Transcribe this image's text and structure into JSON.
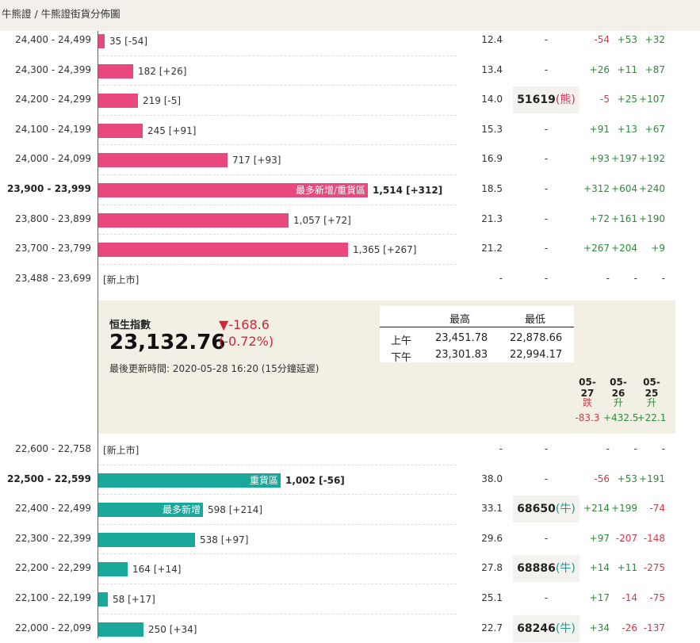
{
  "breadcrumb": "牛熊證 / 牛熊證街貨分佈圖",
  "top_rows": [
    {
      "range": "24,400 - 24,499",
      "bold": false,
      "bar_ratio": 0.0182,
      "count": "35 [-54]",
      "inlabel": "",
      "rate": "12.4",
      "code": "-",
      "code_type": "",
      "ch": [
        "-54",
        "+53",
        "+32"
      ]
    },
    {
      "range": "24,300 - 24,399",
      "bold": false,
      "bar_ratio": 0.1,
      "count": "182 [+26]",
      "inlabel": "",
      "rate": "13.4",
      "code": "-",
      "code_type": "",
      "ch": [
        "+26",
        "+11",
        "+87"
      ]
    },
    {
      "range": "24,200 - 24,299",
      "bold": false,
      "bar_ratio": 0.1136,
      "count": "219 [-5]",
      "inlabel": "",
      "rate": "14.0",
      "code": "51619",
      "code_type": "熊",
      "ch": [
        "-5",
        "+25",
        "+107"
      ]
    },
    {
      "range": "24,100 - 24,199",
      "bold": false,
      "bar_ratio": 0.1273,
      "count": "245 [+91]",
      "inlabel": "",
      "rate": "15.3",
      "code": "-",
      "code_type": "",
      "ch": [
        "+91",
        "+13",
        "+67"
      ]
    },
    {
      "range": "24,000 - 24,099",
      "bold": false,
      "bar_ratio": 0.3704,
      "count": "717 [+93]",
      "inlabel": "",
      "rate": "16.9",
      "code": "-",
      "code_type": "",
      "ch": [
        "+93",
        "+197",
        "+192"
      ]
    },
    {
      "range": "23,900 - 23,999",
      "bold": true,
      "bar_ratio": 0.7727,
      "count": "1,514 [+312]",
      "inlabel": "最多新增/重貨區",
      "rate": "18.5",
      "code": "-",
      "code_type": "",
      "ch": [
        "+312",
        "+604",
        "+240"
      ]
    },
    {
      "range": "23,800 - 23,899",
      "bold": false,
      "bar_ratio": 0.5455,
      "count": "1,057 [+72]",
      "inlabel": "",
      "rate": "21.3",
      "code": "-",
      "code_type": "",
      "ch": [
        "+72",
        "+161",
        "+190"
      ]
    },
    {
      "range": "23,700 - 23,799",
      "bold": false,
      "bar_ratio": 0.7159,
      "count": "1,365 [+267]",
      "inlabel": "",
      "rate": "21.2",
      "code": "-",
      "code_type": "",
      "ch": [
        "+267",
        "+204",
        "+9"
      ]
    },
    {
      "range": "23,488 - 23,699",
      "bold": false,
      "bar_ratio": 0,
      "count": "",
      "inlabel": "",
      "newlabel": "[新上市]",
      "rate": "-",
      "code": "-",
      "code_type": "",
      "ch": [
        "-",
        "-",
        "-"
      ]
    }
  ],
  "bottom_rows": [
    {
      "range": "22,600 - 22,758",
      "bold": false,
      "bar_ratio": 0,
      "count": "",
      "inlabel": "",
      "newlabel": "[新上市]",
      "rate": "-",
      "code": "-",
      "code_type": "",
      "ch": [
        "-",
        "-",
        "-"
      ]
    },
    {
      "range": "22,500 - 22,599",
      "bold": true,
      "bar_ratio": 0.5227,
      "count": "1,002 [-56]",
      "inlabel": "重貨區",
      "rate": "38.0",
      "code": "-",
      "code_type": "",
      "ch": [
        "-56",
        "+53",
        "+191"
      ]
    },
    {
      "range": "22,400 - 22,499",
      "bold": false,
      "bar_ratio": 0.3011,
      "count": "598 [+214]",
      "inlabel": "最多新增",
      "rate": "33.1",
      "code": "68650",
      "code_type": "牛",
      "ch": [
        "+214",
        "+199",
        "-74"
      ]
    },
    {
      "range": "22,300 - 22,399",
      "bold": false,
      "bar_ratio": 0.2784,
      "count": "538 [+97]",
      "inlabel": "",
      "rate": "29.6",
      "code": "-",
      "code_type": "",
      "ch": [
        "+97",
        "-207",
        "-148"
      ]
    },
    {
      "range": "22,200 - 22,299",
      "bold": false,
      "bar_ratio": 0.0852,
      "count": "164 [+14]",
      "inlabel": "",
      "rate": "27.8",
      "code": "68886",
      "code_type": "牛",
      "ch": [
        "+14",
        "+11",
        "-275"
      ]
    },
    {
      "range": "22,100 - 22,199",
      "bold": false,
      "bar_ratio": 0.0284,
      "count": "58 [+17]",
      "inlabel": "",
      "rate": "25.1",
      "code": "-",
      "code_type": "",
      "ch": [
        "+17",
        "-14",
        "-75"
      ]
    },
    {
      "range": "22,000 - 22,099",
      "bold": false,
      "bar_ratio": 0.1295,
      "count": "250 [+34]",
      "inlabel": "",
      "rate": "22.7",
      "code": "68246",
      "code_type": "牛",
      "ch": [
        "+34",
        "-26",
        "-137"
      ]
    }
  ],
  "index": {
    "name": "恒生指數",
    "value": "23,132.76",
    "change": "▼-168.6",
    "change_pct": "(-0.72%)",
    "updated": "最後更新時間: 2020-05-28 16:20 (15分鐘延遲)",
    "hl_header": [
      "最高",
      "最低"
    ],
    "hl_rows": [
      {
        "label": "上午",
        "high": "23,451.78",
        "low": "22,878.66"
      },
      {
        "label": "下午",
        "high": "23,301.83",
        "low": "22,994.17"
      }
    ],
    "days": [
      {
        "date": "05-27",
        "move": "跌",
        "value": "-83.3"
      },
      {
        "date": "05-26",
        "move": "升",
        "value": "+432.5"
      },
      {
        "date": "05-25",
        "move": "升",
        "value": "+22.1"
      }
    ]
  },
  "colors": {
    "bear_bar": "#e8487c",
    "bull_bar": "#1aa89a",
    "positive": "#2e8b3a",
    "negative": "#d03a4a",
    "panel_bg": "#f2f0e4"
  }
}
